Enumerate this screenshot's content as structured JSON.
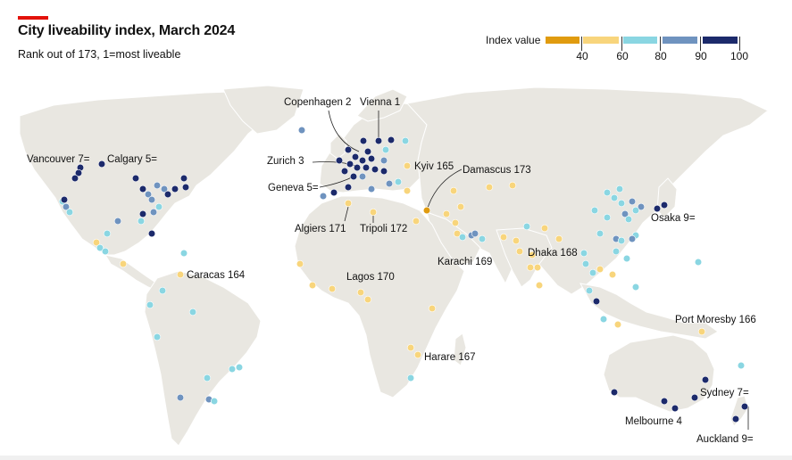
{
  "header": {
    "title": "City liveability index, March 2024",
    "subtitle": "Rank out of 173, 1=most liveable"
  },
  "legend": {
    "title": "Index value",
    "ticks": [
      "40",
      "60",
      "80",
      "90",
      "100"
    ],
    "bins": [
      {
        "from": 0,
        "to": 40,
        "color": "#e09b0f"
      },
      {
        "from": 40,
        "to": 60,
        "color": "#f8d57c"
      },
      {
        "from": 60,
        "to": 80,
        "color": "#8ad6e2"
      },
      {
        "from": 80,
        "to": 90,
        "color": "#6f93bf"
      },
      {
        "from": 90,
        "to": 100,
        "color": "#1c2a6b"
      }
    ]
  },
  "labels": {
    "copenhagen": "Copenhagen 2",
    "vienna": "Vienna 1",
    "zurich": "Zurich 3",
    "geneva": "Geneva 5=",
    "kyiv": "Kyiv 165",
    "damascus": "Damascus 173",
    "algiers": "Algiers 171",
    "tripoli": "Tripoli 172",
    "vancouver": "Vancouver 7=",
    "calgary": "Calgary 5=",
    "caracas": "Caracas 164",
    "lagos": "Lagos 170",
    "karachi": "Karachi 169",
    "dhaka": "Dhaka 168",
    "osaka": "Osaka 9=",
    "port_moresby": "Port Moresby 166",
    "harare": "Harare 167",
    "sydney": "Sydney 7=",
    "melbourne": "Melbourne 4",
    "auckland": "Auckland 9="
  },
  "map_colors": {
    "land": "#e9e7e1",
    "ocean": "#ffffff"
  }
}
